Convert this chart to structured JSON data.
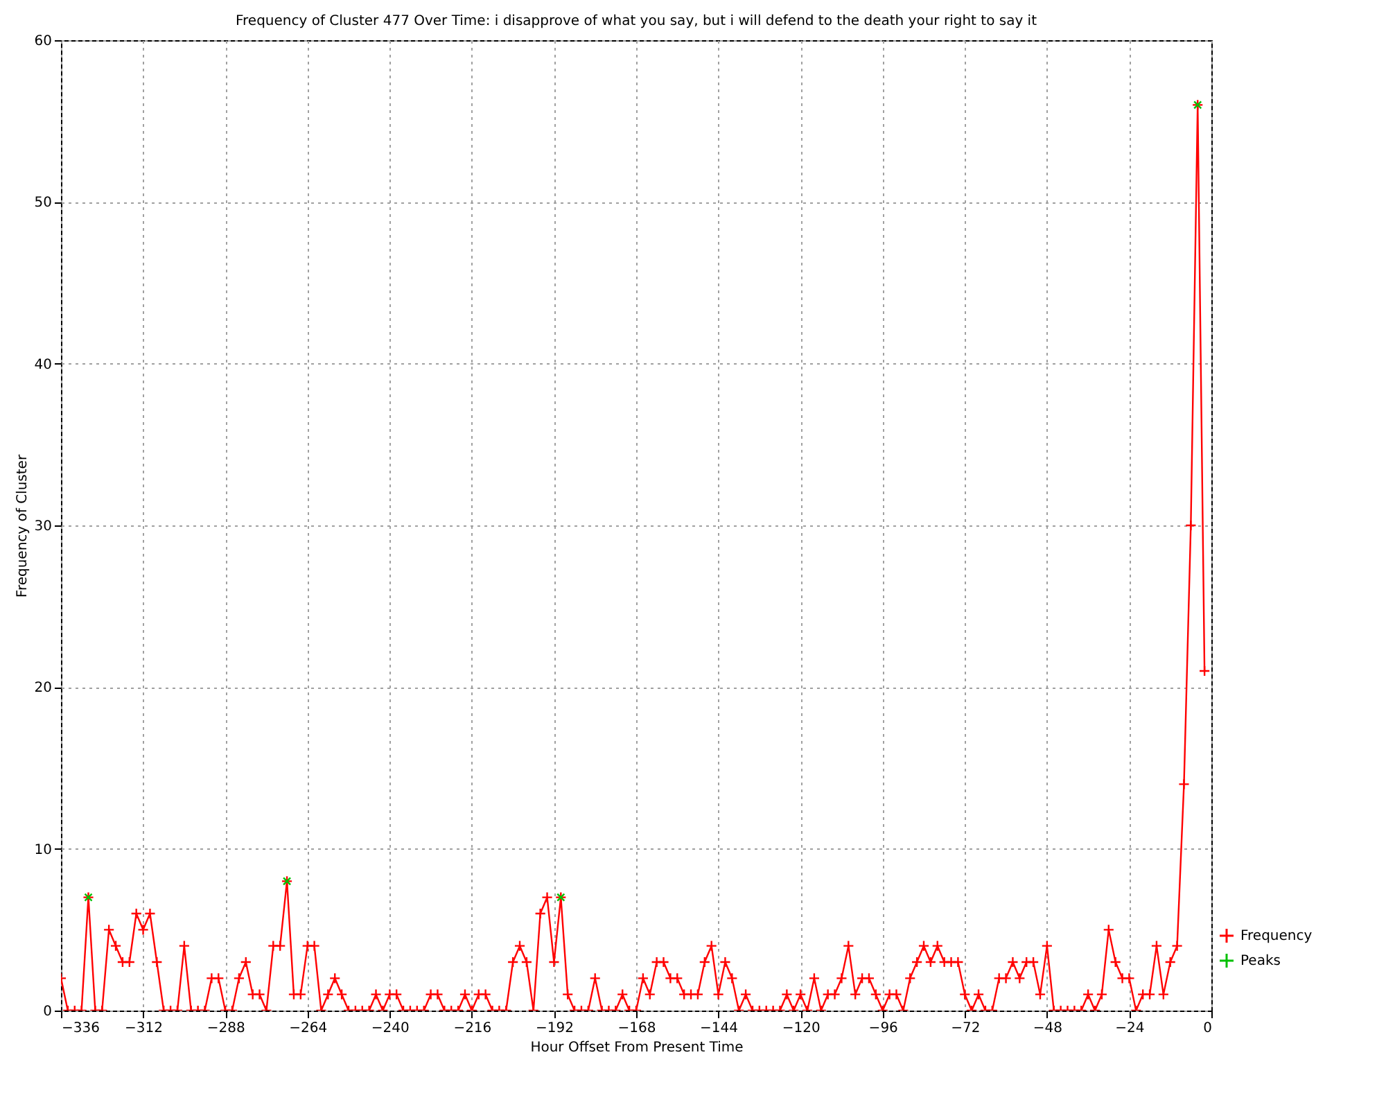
{
  "chart_data": {
    "type": "line",
    "title": "Frequency of Cluster 477 Over Time: i disapprove of what you say, but i will defend to the death your right to say it",
    "xlabel": "Hour Offset From Present Time",
    "ylabel": "Frequency of Cluster",
    "xlim": [
      -336,
      0
    ],
    "xticks": [
      -336,
      -312,
      -288,
      -264,
      -240,
      -216,
      -192,
      -168,
      -144,
      -120,
      -96,
      -72,
      -48,
      -24,
      0
    ],
    "ylim": [
      0,
      60
    ],
    "yticks": [
      0,
      10,
      20,
      30,
      40,
      50,
      60
    ],
    "grid": true,
    "legend": "bottom right",
    "line_style": "solid",
    "series": [
      {
        "name": "Frequency",
        "marker": "cross",
        "color": "#ff0000",
        "x": [
          -336,
          -334,
          -332,
          -330,
          -328,
          -326,
          -324,
          -322,
          -320,
          -318,
          -316,
          -314,
          -312,
          -310,
          -308,
          -306,
          -304,
          -302,
          -300,
          -298,
          -296,
          -294,
          -292,
          -290,
          -288,
          -286,
          -284,
          -282,
          -280,
          -278,
          -276,
          -274,
          -272,
          -270,
          -268,
          -266,
          -264,
          -262,
          -260,
          -258,
          -256,
          -254,
          -252,
          -250,
          -248,
          -246,
          -244,
          -242,
          -240,
          -238,
          -236,
          -234,
          -232,
          -230,
          -228,
          -226,
          -224,
          -222,
          -220,
          -218,
          -216,
          -214,
          -212,
          -210,
          -208,
          -206,
          -204,
          -202,
          -200,
          -198,
          -196,
          -194,
          -192,
          -190,
          -188,
          -186,
          -184,
          -182,
          -180,
          -178,
          -176,
          -174,
          -172,
          -170,
          -168,
          -166,
          -164,
          -162,
          -160,
          -158,
          -156,
          -154,
          -152,
          -150,
          -148,
          -146,
          -144,
          -142,
          -140,
          -138,
          -136,
          -134,
          -132,
          -130,
          -128,
          -126,
          -124,
          -122,
          -120,
          -118,
          -116,
          -114,
          -112,
          -110,
          -108,
          -106,
          -104,
          -102,
          -100,
          -98,
          -96,
          -94,
          -92,
          -90,
          -88,
          -86,
          -84,
          -82,
          -80,
          -78,
          -76,
          -74,
          -72,
          -70,
          -68,
          -66,
          -64,
          -62,
          -60,
          -58,
          -56,
          -54,
          -52,
          -50,
          -48,
          -46,
          -44,
          -42,
          -40,
          -38,
          -36,
          -34,
          -32,
          -30,
          -28,
          -26,
          -24,
          -22,
          -20,
          -18,
          -16,
          -14,
          -12,
          -10,
          -8,
          -6,
          -4,
          -2
        ],
        "values": [
          2,
          0,
          0,
          0,
          7,
          0,
          0,
          5,
          4,
          3,
          3,
          6,
          5,
          6,
          3,
          0,
          0,
          0,
          4,
          0,
          0,
          0,
          2,
          2,
          0,
          0,
          2,
          3,
          1,
          1,
          0,
          4,
          4,
          8,
          1,
          1,
          4,
          4,
          0,
          1,
          2,
          1,
          0,
          0,
          0,
          0,
          1,
          0,
          1,
          1,
          0,
          0,
          0,
          0,
          1,
          1,
          0,
          0,
          0,
          1,
          0,
          1,
          1,
          0,
          0,
          0,
          3,
          4,
          3,
          0,
          6,
          7,
          3,
          7,
          1,
          0,
          0,
          0,
          2,
          0,
          0,
          0,
          1,
          0,
          0,
          2,
          1,
          3,
          3,
          2,
          2,
          1,
          1,
          1,
          3,
          4,
          1,
          3,
          2,
          0,
          1,
          0,
          0,
          0,
          0,
          0,
          1,
          0,
          1,
          0,
          2,
          0,
          1,
          1,
          2,
          4,
          1,
          2,
          2,
          1,
          0,
          1,
          1,
          0,
          2,
          3,
          4,
          3,
          4,
          3,
          3,
          3,
          1,
          0,
          1,
          0,
          0,
          2,
          2,
          3,
          2,
          3,
          3,
          1,
          4,
          0,
          0,
          0,
          0,
          0,
          1,
          0,
          1,
          5,
          3,
          2,
          2,
          0,
          1,
          1,
          4,
          1,
          3,
          4,
          14,
          30,
          56,
          21
        ]
      },
      {
        "name": "Peaks",
        "type": "scatter",
        "marker": "cross",
        "color": "#00c000",
        "x": [
          -328,
          -270,
          -190,
          -4
        ],
        "values": [
          7,
          8,
          7,
          56
        ]
      }
    ]
  }
}
